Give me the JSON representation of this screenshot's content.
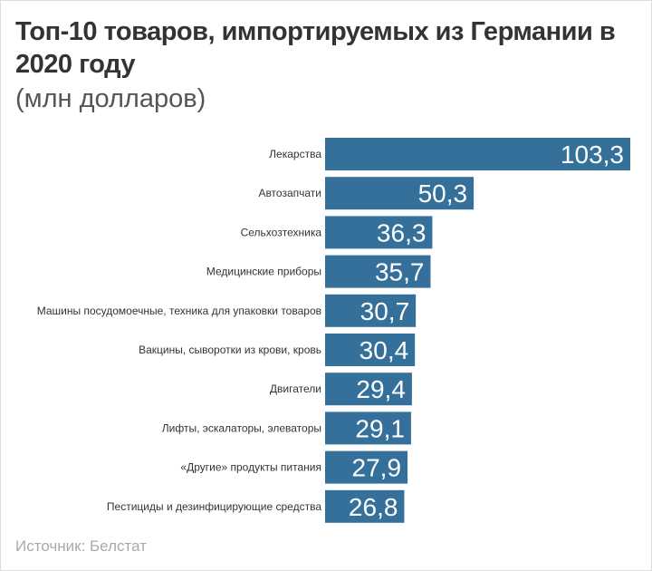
{
  "chart_data": {
    "type": "bar",
    "orientation": "horizontal",
    "title": "Топ-10 товаров, импортируемых из Германии в 2020 году",
    "subtitle": "(млн долларов)",
    "source": "Источник: Белстат",
    "categories": [
      "Лекарства",
      "Автозапчати",
      "Сельхозтехника",
      "Медицинские приборы",
      "Машины посудомоечные, техника для упаковки товаров",
      "Вакцины, сыворотки из крови, кровь",
      "Двигатели",
      "Лифты, эскалаторы, элеваторы",
      "«Другие» продукты питания",
      "Пестициды и дезинфицирующие средства"
    ],
    "values": [
      103.3,
      50.3,
      36.3,
      35.7,
      30.7,
      30.4,
      29.4,
      29.1,
      27.9,
      26.8
    ],
    "value_labels": [
      "103,3",
      "50,3",
      "36,3",
      "35,7",
      "30,7",
      "30,4",
      "29,4",
      "29,1",
      "27,9",
      "26,8"
    ],
    "bar_color": "#35709a",
    "grid": false,
    "legend": "none"
  }
}
